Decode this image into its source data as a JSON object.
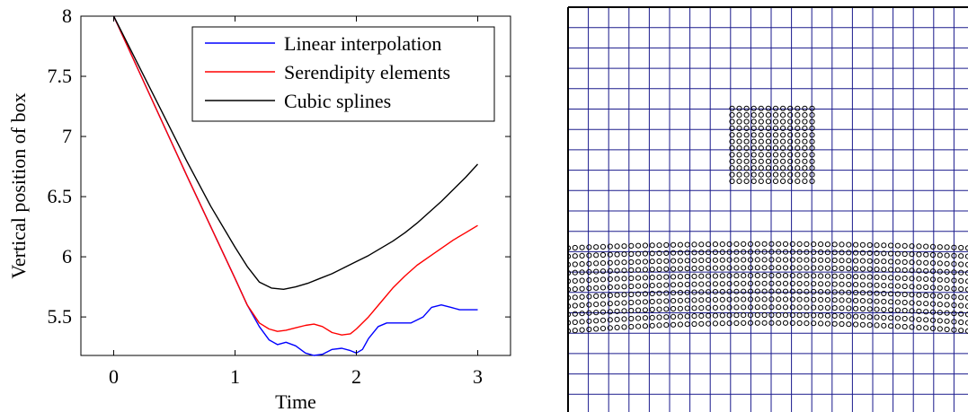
{
  "chart_data": [
    {
      "type": "line",
      "title": "",
      "xlabel": "Time",
      "ylabel": "Vertical position of box",
      "xlim": [
        -0.27,
        3.27
      ],
      "ylim": [
        5.18,
        8.0
      ],
      "xticks": [
        0,
        1,
        2,
        3
      ],
      "xtick_labels": [
        "0",
        "1",
        "2",
        "3"
      ],
      "yticks": [
        5.5,
        6,
        6.5,
        7,
        7.5,
        8
      ],
      "ytick_labels": [
        "5.5",
        "6",
        "6.5",
        "7",
        "7.5",
        "8"
      ],
      "grid": false,
      "legend_position": "top-right",
      "series": [
        {
          "name": "Linear interpolation",
          "color": "#0000ff",
          "x": [
            0,
            0.2,
            0.4,
            0.6,
            0.8,
            1.0,
            1.1,
            1.2,
            1.28,
            1.35,
            1.42,
            1.5,
            1.58,
            1.65,
            1.72,
            1.8,
            1.88,
            1.95,
            2.0,
            2.05,
            2.1,
            2.18,
            2.25,
            2.35,
            2.45,
            2.55,
            2.62,
            2.7,
            2.78,
            2.85,
            2.92,
            3.0
          ],
          "y": [
            8.0,
            7.56,
            7.12,
            6.68,
            6.25,
            5.82,
            5.6,
            5.42,
            5.31,
            5.27,
            5.29,
            5.26,
            5.2,
            5.18,
            5.19,
            5.23,
            5.24,
            5.22,
            5.2,
            5.23,
            5.32,
            5.42,
            5.45,
            5.45,
            5.45,
            5.5,
            5.58,
            5.6,
            5.58,
            5.56,
            5.56,
            5.56
          ]
        },
        {
          "name": "Serendipity elements",
          "color": "#ff0000",
          "x": [
            0,
            0.2,
            0.4,
            0.6,
            0.8,
            1.0,
            1.1,
            1.2,
            1.28,
            1.35,
            1.42,
            1.5,
            1.58,
            1.65,
            1.72,
            1.8,
            1.88,
            1.95,
            2.0,
            2.1,
            2.2,
            2.3,
            2.4,
            2.5,
            2.6,
            2.7,
            2.8,
            2.9,
            3.0
          ],
          "y": [
            8.0,
            7.56,
            7.12,
            6.68,
            6.25,
            5.82,
            5.6,
            5.45,
            5.4,
            5.38,
            5.39,
            5.41,
            5.43,
            5.44,
            5.42,
            5.37,
            5.35,
            5.36,
            5.4,
            5.5,
            5.62,
            5.74,
            5.84,
            5.93,
            6.0,
            6.07,
            6.14,
            6.2,
            6.26
          ]
        },
        {
          "name": "Cubic splines",
          "color": "#000000",
          "x": [
            0,
            0.2,
            0.4,
            0.6,
            0.8,
            1.0,
            1.1,
            1.2,
            1.3,
            1.4,
            1.5,
            1.6,
            1.7,
            1.8,
            1.9,
            2.0,
            2.1,
            2.2,
            2.3,
            2.4,
            2.5,
            2.6,
            2.7,
            2.8,
            2.9,
            3.0
          ],
          "y": [
            8.0,
            7.6,
            7.2,
            6.8,
            6.42,
            6.08,
            5.92,
            5.79,
            5.74,
            5.73,
            5.75,
            5.78,
            5.82,
            5.86,
            5.91,
            5.96,
            6.01,
            6.07,
            6.13,
            6.2,
            6.28,
            6.37,
            6.46,
            6.56,
            6.66,
            6.77
          ]
        }
      ]
    },
    {
      "type": "scatter",
      "title": "",
      "xlabel": "",
      "ylabel": "",
      "grid": true,
      "grid_color": "#1a1a8c",
      "marker": "open-circle",
      "marker_color": "#000000",
      "regions": [
        {
          "name": "box",
          "shape": "square",
          "columns": 12,
          "rows": 12,
          "x_range": [
            0.41,
            0.61
          ],
          "y_range": [
            0.25,
            0.43
          ]
        },
        {
          "name": "slab",
          "shape": "layer",
          "columns": 58,
          "rows": 11,
          "x_range": [
            0.0,
            1.0
          ],
          "y_top_edge": 0.595,
          "y_top_center": 0.585,
          "y_bottom_edge": 0.8,
          "y_bottom_center": 0.78
        }
      ]
    }
  ]
}
